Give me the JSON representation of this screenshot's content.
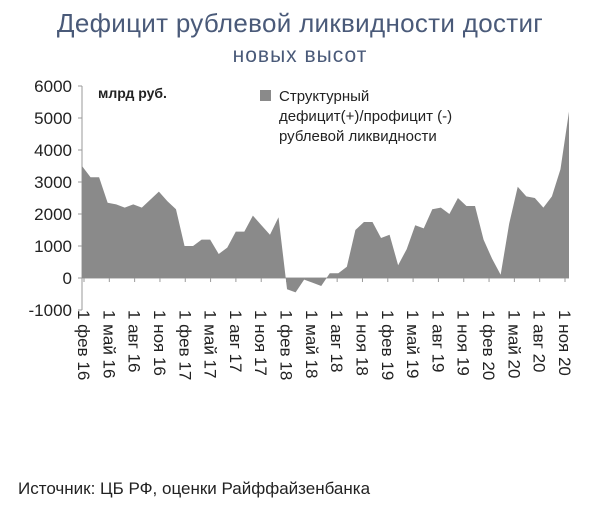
{
  "title_line1": "Дефицит рублевой ликвидности достиг",
  "title_line2": "новых высот",
  "source": "Источник: ЦБ РФ, оценки Райффайзенбанка",
  "colors": {
    "area": "#8a8a8a",
    "title": "#4a5a79",
    "text": "#222222",
    "axis": "#9a9a9a"
  },
  "chart_data": {
    "type": "area",
    "unit_label": "млрд руб.",
    "legend": [
      "Структурный",
      "дефицит(+)/профицит (-)",
      "рублевой ликвидности"
    ],
    "ylim": [
      -1000,
      6000
    ],
    "yticks": [
      -1000,
      0,
      1000,
      2000,
      3000,
      4000,
      5000,
      6000
    ],
    "x_tick_labels": [
      "1 фев 16",
      "1 май 16",
      "1 авг 16",
      "1 ноя 16",
      "1 фев 17",
      "1 май 17",
      "1 авг 17",
      "1 ноя 17",
      "1 фев 18",
      "1 май 18",
      "1 авг 18",
      "1 ноя 18",
      "1 фев 19",
      "1 май 19",
      "1 авг 19",
      "1 ноя 19",
      "1 фев 20",
      "1 май 20",
      "1 авг 20",
      "1 ноя 20"
    ],
    "x_start": "1 фев 16",
    "x_end": "1 дек 20",
    "values": [
      3500,
      3150,
      3150,
      2350,
      2300,
      2200,
      2300,
      2200,
      2450,
      2700,
      2400,
      2150,
      1000,
      1000,
      1200,
      1200,
      750,
      950,
      1450,
      1450,
      1950,
      1650,
      1350,
      1900,
      -350,
      -450,
      -50,
      -150,
      -250,
      150,
      150,
      350,
      1500,
      1750,
      1750,
      1250,
      1350,
      400,
      900,
      1650,
      1550,
      2150,
      2200,
      2000,
      2500,
      2250,
      2250,
      1200,
      600,
      100,
      1700,
      2850,
      2550,
      2500,
      2200,
      2550,
      3400,
      5200
    ]
  }
}
